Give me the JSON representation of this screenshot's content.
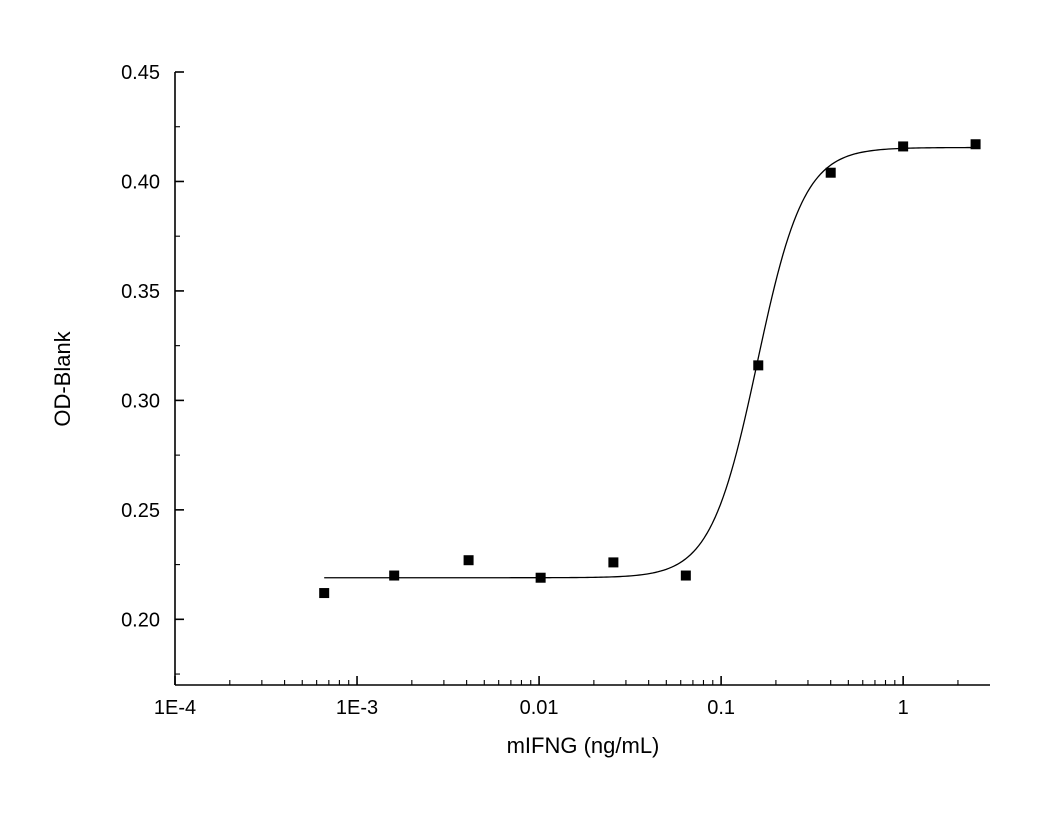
{
  "figure": {
    "background": "#ffffff"
  },
  "chart_data": {
    "type": "scatter",
    "subtype": "dose-response curve with sigmoidal (4PL) fit",
    "title": "",
    "xlabel": "mIFNG (ng/mL)",
    "ylabel": "OD-Blank",
    "x_scale": "log10",
    "y_scale": "linear",
    "xlim": [
      0.0001,
      3
    ],
    "ylim": [
      0.17,
      0.45
    ],
    "grid": false,
    "legend": null,
    "x_ticks": [
      {
        "value": 0.0001,
        "label": "1E-4"
      },
      {
        "value": 0.001,
        "label": "1E-3"
      },
      {
        "value": 0.01,
        "label": "0.01"
      },
      {
        "value": 0.1,
        "label": "0.1"
      },
      {
        "value": 1,
        "label": "1"
      }
    ],
    "y_ticks": [
      {
        "value": 0.2,
        "label": "0.20"
      },
      {
        "value": 0.25,
        "label": "0.25"
      },
      {
        "value": 0.3,
        "label": "0.30"
      },
      {
        "value": 0.35,
        "label": "0.35"
      },
      {
        "value": 0.4,
        "label": "0.40"
      },
      {
        "value": 0.45,
        "label": "0.45"
      }
    ],
    "y_minor_ticks": [
      0.175,
      0.225,
      0.275,
      0.325,
      0.375,
      0.425
    ],
    "points": {
      "x": [
        0.00066,
        0.0016,
        0.0041,
        0.0102,
        0.0256,
        0.064,
        0.16,
        0.4,
        1.0,
        2.5
      ],
      "y": [
        0.212,
        0.22,
        0.227,
        0.219,
        0.226,
        0.22,
        0.316,
        0.404,
        0.416,
        0.417
      ]
    },
    "fit_curve": {
      "model": "4PL logistic",
      "bottom": 0.219,
      "top": 0.4155,
      "ec50": 0.158,
      "hill": 3.4,
      "x_start": 0.00066,
      "x_end": 2.5
    },
    "marker": {
      "shape": "square",
      "color": "#000000",
      "size": 10
    },
    "line_color": "#000000",
    "axis_color": "#000000"
  }
}
